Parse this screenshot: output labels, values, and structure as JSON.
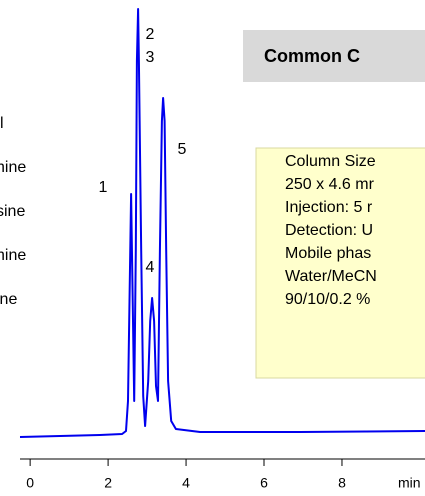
{
  "chart_data": {
    "type": "line",
    "title": "Common C",
    "compound_labels": [
      "l",
      "hine",
      "sine",
      "hine",
      "ine"
    ],
    "conditions": [
      "Column Size",
      "250 x 4.6 mr",
      "Injection: 5 r",
      "Detection: U",
      "Mobile phas",
      "Water/MeCN",
      "90/10/0.2 %"
    ],
    "peak_labels": [
      "1",
      "2",
      "3",
      "4",
      "5"
    ],
    "x": [
      -0.26,
      0.77,
      1.79,
      2.36,
      2.46,
      2.51,
      2.55,
      2.59,
      2.63,
      2.67,
      2.71,
      2.74,
      2.77,
      2.79,
      2.85,
      2.9,
      2.95,
      3.03,
      3.08,
      3.13,
      3.18,
      3.23,
      3.28,
      3.33,
      3.38,
      3.41,
      3.45,
      3.49,
      3.54,
      3.62,
      3.74,
      4.36,
      6.92,
      10.13
    ],
    "values": [
      0,
      1,
      2,
      3,
      6,
      36,
      136,
      243,
      136,
      36,
      186,
      376,
      428,
      376,
      186,
      41,
      11,
      56,
      116,
      139,
      116,
      51,
      36,
      186,
      316,
      339,
      316,
      186,
      56,
      16,
      8,
      5,
      5,
      6
    ],
    "color": "#0000ee",
    "xlim": [
      -0.26,
      10.13
    ],
    "xticks": [
      0,
      2,
      4,
      6,
      8
    ],
    "xlabel": "min",
    "ylim": [
      0,
      437
    ]
  }
}
